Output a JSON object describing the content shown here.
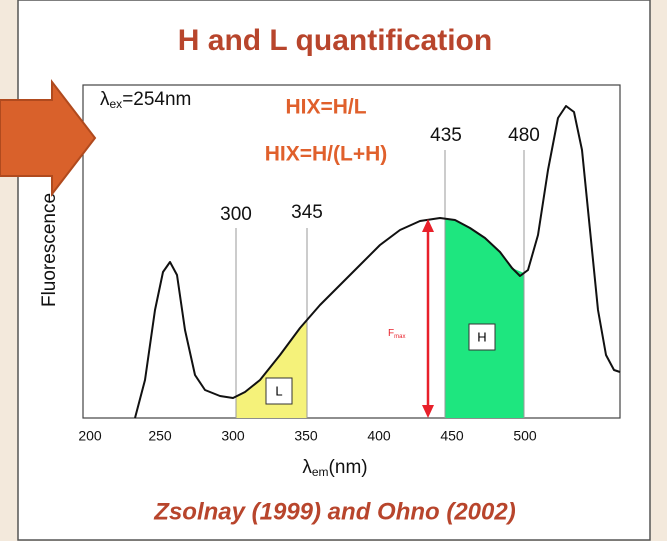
{
  "title": "H and L quantification",
  "excitation": {
    "symbol": "λ",
    "sub": "ex",
    "rest": "=254nm"
  },
  "formulas": [
    "HIX=H/L",
    "HIX=H/(L+H)"
  ],
  "y_axis_label": "Fluorescence",
  "x_axis_label": {
    "symbol": "λ",
    "sub": "em",
    "rest": "(nm)"
  },
  "x_ticks": [
    "200",
    "250",
    "300",
    "350",
    "400",
    "450",
    "500"
  ],
  "markers": [
    "300",
    "345",
    "435",
    "480"
  ],
  "fmax": {
    "main": "F",
    "sub": "max"
  },
  "regions": [
    "L",
    "H"
  ],
  "citation": "Zsolnay (1999) and Ohno (2002)"
}
